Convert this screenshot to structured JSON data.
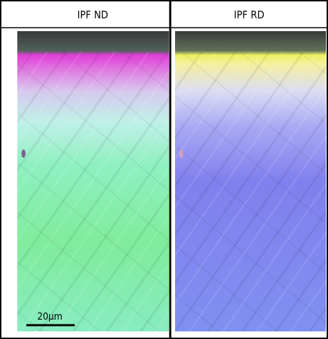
{
  "panels": [
    {
      "title": "IPF ND"
    },
    {
      "title": "IPF RD"
    }
  ],
  "scale_bar": {
    "label": "20μm"
  }
}
